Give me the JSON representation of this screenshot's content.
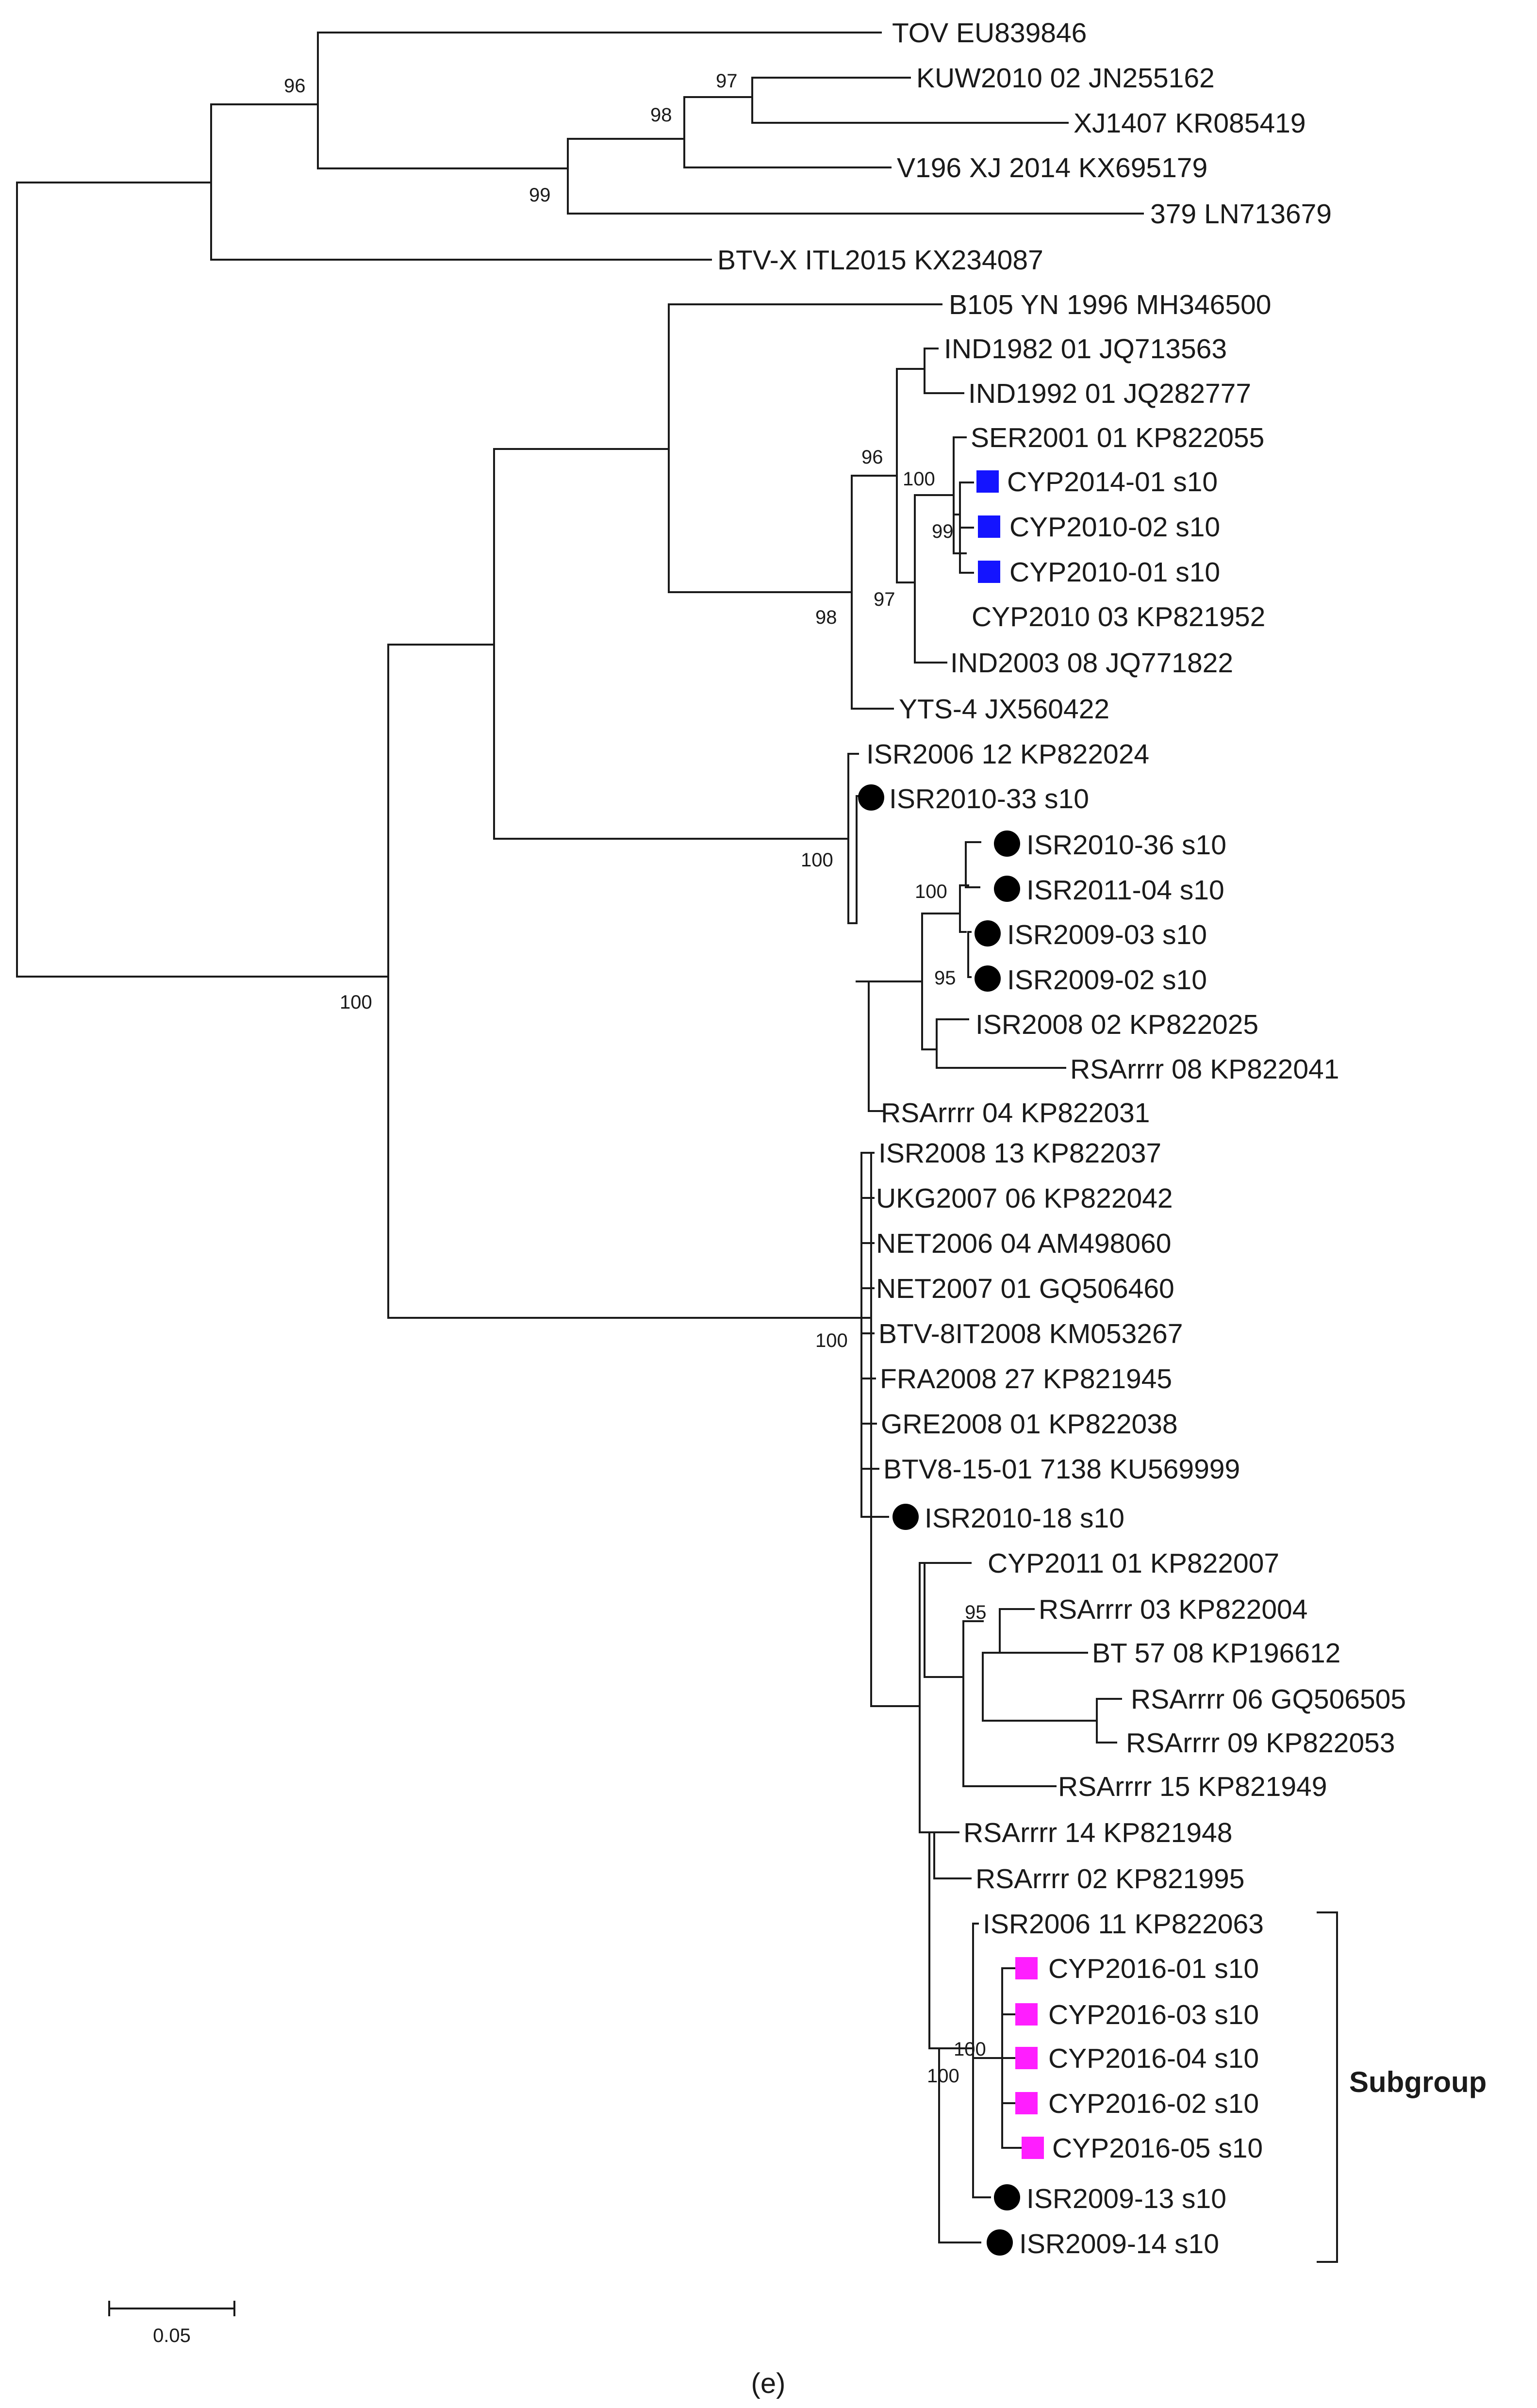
{
  "figure": {
    "panel_label": "(e)",
    "scale_bar_label": "0.05",
    "subgroup_label": "Subgroup"
  },
  "legend_colors": {
    "blue_square": "#1414ff",
    "magenta_square": "#ff1eff",
    "black_circle": "#000000"
  },
  "taxa": [
    {
      "id": "tov",
      "label": "TOV EU839846",
      "marker": null
    },
    {
      "id": "kuw",
      "label": "KUW2010 02 JN255162",
      "marker": null
    },
    {
      "id": "xj1407",
      "label": "XJ1407 KR085419",
      "marker": null
    },
    {
      "id": "v196",
      "label": "V196 XJ 2014 KX695179",
      "marker": null
    },
    {
      "id": "n379",
      "label": "379 LN713679",
      "marker": null
    },
    {
      "id": "btvx",
      "label": "BTV-X ITL2015 KX234087",
      "marker": null
    },
    {
      "id": "b105",
      "label": "B105 YN 1996 MH346500",
      "marker": null
    },
    {
      "id": "ind1982",
      "label": "IND1982 01 JQ713563",
      "marker": null
    },
    {
      "id": "ind1992",
      "label": "IND1992 01 JQ282777",
      "marker": null
    },
    {
      "id": "ser2001",
      "label": "SER2001 01 KP822055",
      "marker": null
    },
    {
      "id": "cyp1401",
      "label": "CYP2014-01 s10",
      "marker": "blue_square"
    },
    {
      "id": "cyp1002",
      "label": "CYP2010-02 s10",
      "marker": "blue_square"
    },
    {
      "id": "cyp1001",
      "label": "CYP2010-01 s10",
      "marker": "blue_square"
    },
    {
      "id": "cyp1003",
      "label": "CYP2010 03 KP821952",
      "marker": null
    },
    {
      "id": "ind2003",
      "label": "IND2003 08 JQ771822",
      "marker": null
    },
    {
      "id": "yts4",
      "label": "YTS-4 JX560422",
      "marker": null
    },
    {
      "id": "isr0612",
      "label": "ISR2006 12 KP822024",
      "marker": null
    },
    {
      "id": "isr1033",
      "label": "ISR2010-33 s10",
      "marker": "black_circle"
    },
    {
      "id": "isr1036",
      "label": "ISR2010-36 s10",
      "marker": "black_circle"
    },
    {
      "id": "isr1104",
      "label": "ISR2011-04 s10",
      "marker": "black_circle"
    },
    {
      "id": "isr0903",
      "label": "ISR2009-03 s10",
      "marker": "black_circle"
    },
    {
      "id": "isr0902",
      "label": "ISR2009-02 s10",
      "marker": "black_circle"
    },
    {
      "id": "isr0802",
      "label": "ISR2008 02 KP822025",
      "marker": null
    },
    {
      "id": "rsa08",
      "label": "RSArrrr 08 KP822041",
      "marker": null
    },
    {
      "id": "rsa04",
      "label": "RSArrrr 04 KP822031",
      "marker": null
    },
    {
      "id": "isr0813",
      "label": "ISR2008 13 KP822037",
      "marker": null
    },
    {
      "id": "ukg",
      "label": "UKG2007 06 KP822042",
      "marker": null
    },
    {
      "id": "net2006",
      "label": "NET2006 04 AM498060",
      "marker": null
    },
    {
      "id": "net2007",
      "label": "NET2007 01 GQ506460",
      "marker": null
    },
    {
      "id": "btv8it",
      "label": "BTV-8IT2008 KM053267",
      "marker": null
    },
    {
      "id": "fra",
      "label": "FRA2008 27 KP821945",
      "marker": null
    },
    {
      "id": "gre",
      "label": "GRE2008 01 KP822038",
      "marker": null
    },
    {
      "id": "btv815",
      "label": "BTV8-15-01  7138  KU569999",
      "marker": null
    },
    {
      "id": "isr1018",
      "label": "ISR2010-18 s10",
      "marker": "black_circle"
    },
    {
      "id": "cyp2011",
      "label": "CYP2011 01 KP822007",
      "marker": null
    },
    {
      "id": "rsa03",
      "label": "RSArrrr 03 KP822004",
      "marker": null
    },
    {
      "id": "bt57",
      "label": "BT 57 08 KP196612",
      "marker": null
    },
    {
      "id": "rsa06",
      "label": "RSArrrr 06 GQ506505",
      "marker": null
    },
    {
      "id": "rsa09",
      "label": "RSArrrr 09 KP822053",
      "marker": null
    },
    {
      "id": "rsa15",
      "label": "RSArrrr 15 KP821949",
      "marker": null
    },
    {
      "id": "rsa14",
      "label": "RSArrrr 14 KP821948",
      "marker": null
    },
    {
      "id": "rsa02",
      "label": "RSArrrr 02 KP821995",
      "marker": null
    },
    {
      "id": "isr0611",
      "label": "ISR2006 11 KP822063",
      "marker": null
    },
    {
      "id": "cyp1601",
      "label": "CYP2016-01 s10",
      "marker": "magenta_square"
    },
    {
      "id": "cyp1603",
      "label": "CYP2016-03 s10",
      "marker": "magenta_square"
    },
    {
      "id": "cyp1604",
      "label": "CYP2016-04 s10",
      "marker": "magenta_square"
    },
    {
      "id": "cyp1602",
      "label": "CYP2016-02 s10",
      "marker": "magenta_square"
    },
    {
      "id": "cyp1605",
      "label": "CYP2016-05 s10",
      "marker": "magenta_square"
    },
    {
      "id": "isr0913",
      "label": "ISR2009-13 s10",
      "marker": "black_circle"
    },
    {
      "id": "isr0914",
      "label": "ISR2009-14 s10",
      "marker": "black_circle"
    }
  ],
  "bootstrap_values": [
    "96",
    "97",
    "98",
    "99",
    "100",
    "96",
    "99",
    "97",
    "98",
    "100",
    "100",
    "95",
    "100",
    "100",
    "95",
    "100",
    "100"
  ]
}
